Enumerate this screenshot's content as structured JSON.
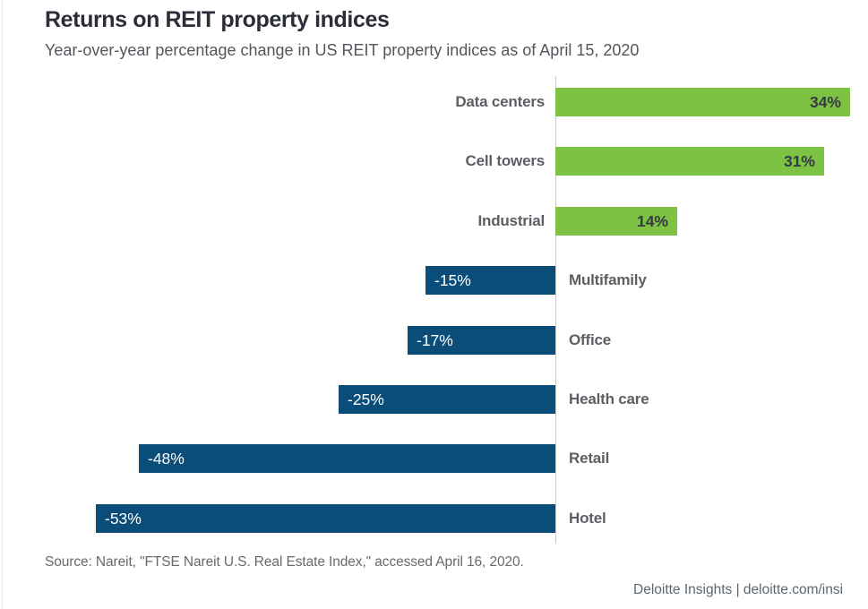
{
  "page": {
    "title": "Returns on REIT property indices",
    "subtitle": "Year-over-year percentage change in US REIT property indices as of April 15, 2020",
    "source": "Source: Nareit, \"FTSE Nareit U.S. Real Estate Index,\" accessed April 16, 2020.",
    "footer": "Deloitte Insights | deloitte.com/insi"
  },
  "colors": {
    "positive_bar": "#7dc242",
    "negative_bar": "#0b4d79",
    "axis_line": "#c9c9c9",
    "positive_value_text": "#333a42",
    "negative_value_text": "#ffffff",
    "category_label_text": "#5b5e63"
  },
  "chart_data": {
    "type": "bar",
    "orientation": "horizontal",
    "title": "Returns on REIT property indices",
    "subtitle": "Year-over-year percentage change in US REIT property indices as of April 15, 2020",
    "categories": [
      "Data centers",
      "Cell towers",
      "Industrial",
      "Multifamily",
      "Office",
      "Health care",
      "Retail",
      "Hotel"
    ],
    "values": [
      34,
      31,
      14,
      -15,
      -17,
      -25,
      -48,
      -53
    ],
    "value_labels": [
      "34%",
      "31%",
      "14%",
      "-15%",
      "-17%",
      "-25%",
      "-48%",
      "-53%"
    ],
    "unit": "%",
    "baseline": 0,
    "xlim": [
      -59,
      36
    ],
    "grid": false,
    "legend": false,
    "value_label_position": "inside-end",
    "category_label_position": "opposite-side-of-axis"
  }
}
